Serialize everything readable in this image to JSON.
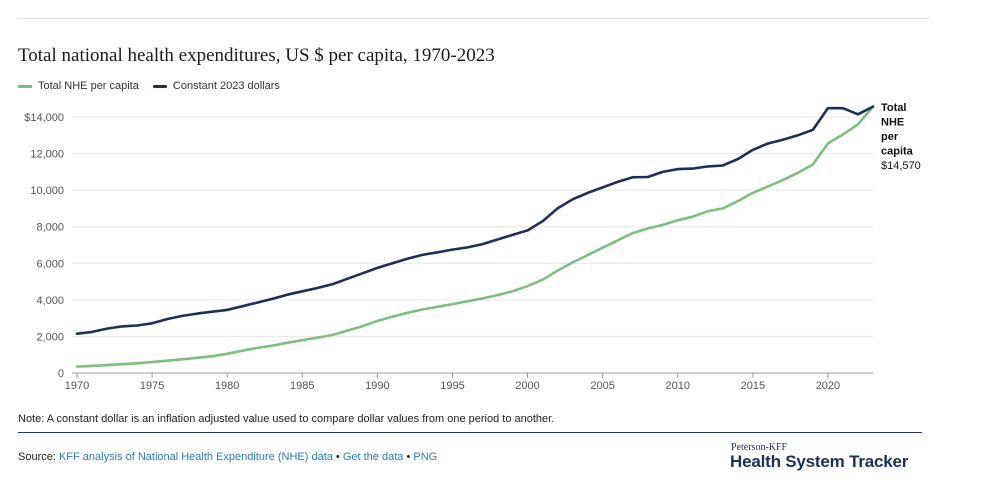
{
  "chart_data": {
    "type": "line",
    "title": "Total national health expenditures, US $ per capita, 1970-2023",
    "xlabel": "",
    "ylabel": "",
    "xlim": [
      1970,
      2023
    ],
    "ylim": [
      0,
      14000
    ],
    "grid": true,
    "legend_placement": "top-left",
    "x_ticks": [
      1970,
      1975,
      1980,
      1985,
      1990,
      1995,
      2000,
      2005,
      2010,
      2015,
      2020
    ],
    "x_tick_labels": [
      "1970",
      "1975",
      "1980",
      "1985",
      "1990",
      "1995",
      "2000",
      "2005",
      "2010",
      "2015",
      "2020"
    ],
    "y_ticks": [
      0,
      2000,
      4000,
      6000,
      8000,
      10000,
      12000,
      14000
    ],
    "y_tick_labels": [
      "0",
      "2,000",
      "4,000",
      "6,000",
      "8,000",
      "10,000",
      "12,000",
      "$14,000"
    ],
    "x": [
      1970,
      1971,
      1972,
      1973,
      1974,
      1975,
      1976,
      1977,
      1978,
      1979,
      1980,
      1981,
      1982,
      1983,
      1984,
      1985,
      1986,
      1987,
      1988,
      1989,
      1990,
      1991,
      1992,
      1993,
      1994,
      1995,
      1996,
      1997,
      1998,
      1999,
      2000,
      2001,
      2002,
      2003,
      2004,
      2005,
      2006,
      2007,
      2008,
      2009,
      2010,
      2011,
      2012,
      2013,
      2014,
      2015,
      2016,
      2017,
      2018,
      2019,
      2020,
      2021,
      2022,
      2023
    ],
    "series": [
      {
        "name": "Total NHE per capita",
        "color": "#7dbf7e",
        "values": [
          350,
          390,
          430,
          480,
          530,
          600,
          670,
          750,
          830,
          920,
          1050,
          1220,
          1370,
          1500,
          1650,
          1800,
          1930,
          2080,
          2320,
          2560,
          2850,
          3080,
          3290,
          3470,
          3620,
          3770,
          3920,
          4080,
          4260,
          4470,
          4750,
          5100,
          5600,
          6050,
          6450,
          6850,
          7250,
          7650,
          7900,
          8100,
          8350,
          8550,
          8850,
          9000,
          9400,
          9850,
          10200,
          10550,
          10950,
          11400,
          12550,
          13050,
          13600,
          14570
        ]
      },
      {
        "name": "Constant 2023 dollars",
        "color": "#1c2f57",
        "values": [
          2150,
          2250,
          2430,
          2550,
          2600,
          2720,
          2950,
          3120,
          3250,
          3350,
          3450,
          3650,
          3850,
          4050,
          4280,
          4470,
          4650,
          4850,
          5150,
          5450,
          5750,
          6000,
          6250,
          6460,
          6600,
          6750,
          6870,
          7050,
          7300,
          7550,
          7800,
          8300,
          9000,
          9500,
          9850,
          10150,
          10450,
          10700,
          10720,
          11000,
          11150,
          11180,
          11300,
          11350,
          11700,
          12200,
          12550,
          12760,
          13000,
          13300,
          14480,
          14480,
          14150,
          14570
        ]
      }
    ],
    "end_label": {
      "line1": "Total",
      "line2": "NHE",
      "line3": "per",
      "line4": "capita",
      "value": "$14,570"
    }
  },
  "note": "Note: A constant dollar is an inflation adjusted value used to compare dollar values from one period to another.",
  "source": {
    "prefix": "Source: ",
    "link1": "KFF analysis of National Health Expenditure (NHE) data",
    "sep1": " • ",
    "link2": "Get the data",
    "sep2": " • ",
    "link3": "PNG"
  },
  "brand": {
    "small": "Peterson-KFF",
    "big": "Health System Tracker"
  }
}
